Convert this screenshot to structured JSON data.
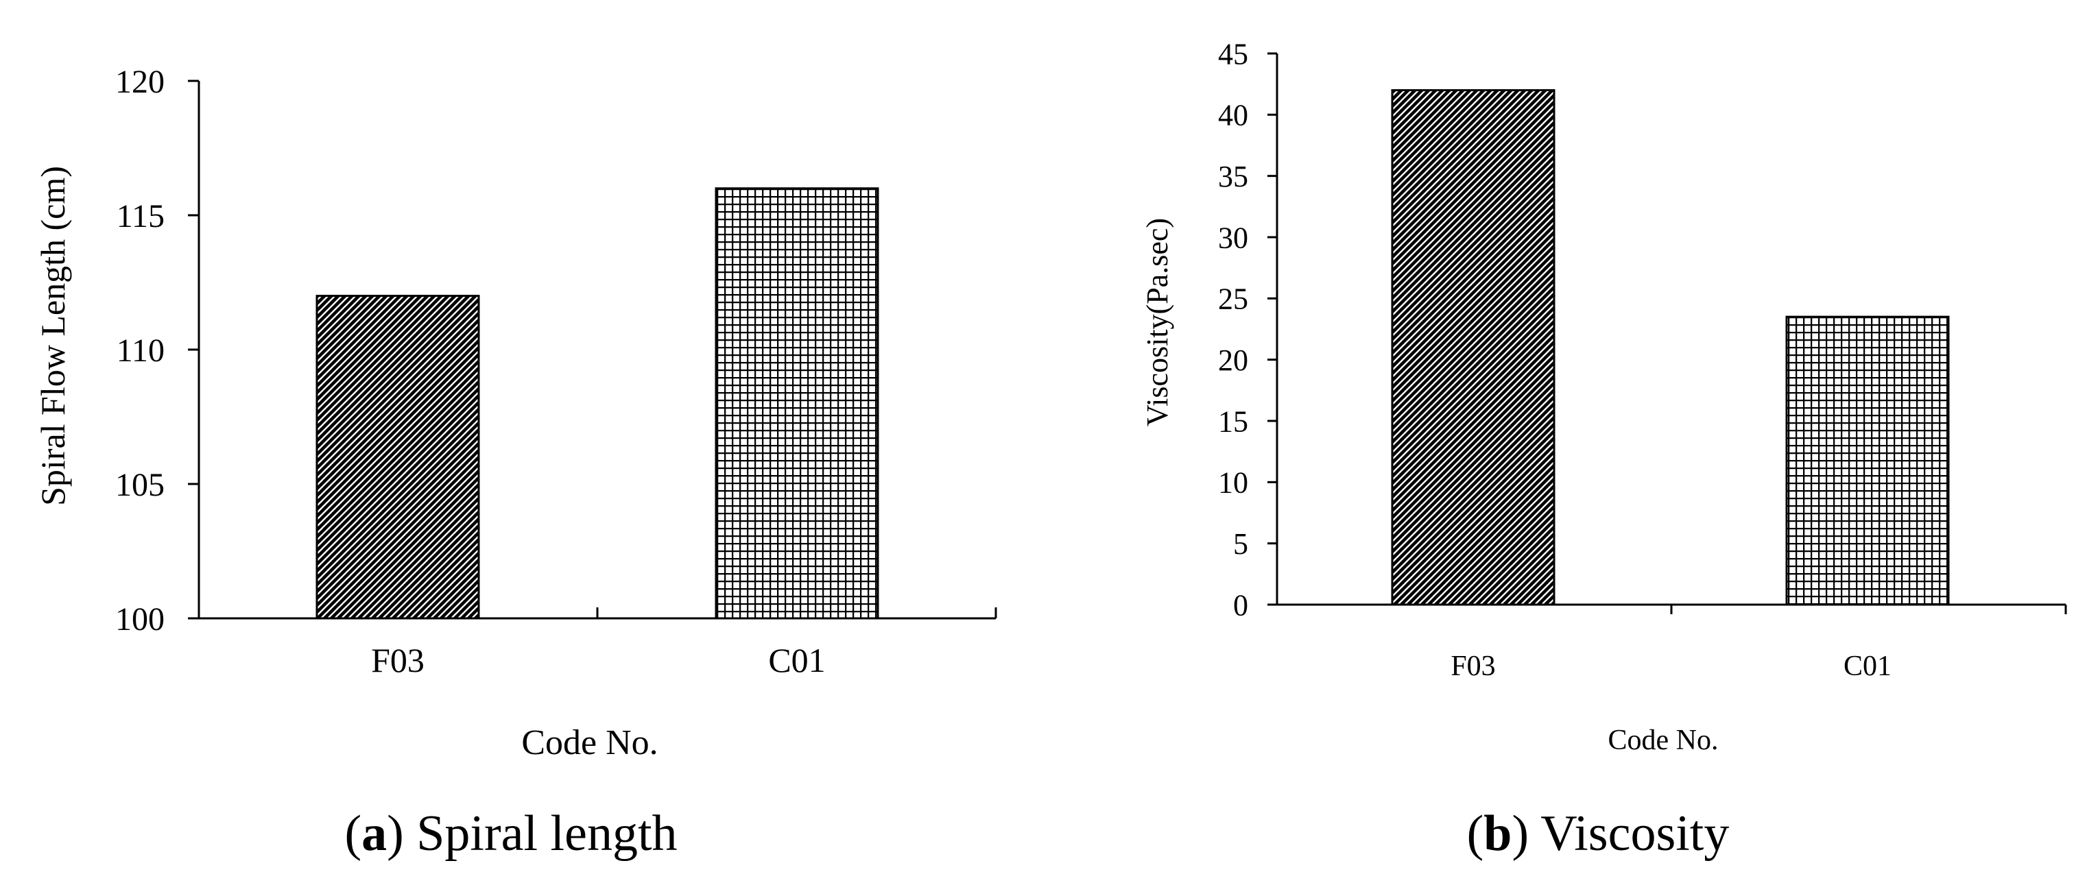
{
  "chart_data": [
    {
      "id": "a",
      "type": "bar",
      "title": "",
      "xlabel": "Code No.",
      "ylabel": "Spiral Flow Length (cm)",
      "categories": [
        "F03",
        "C01"
      ],
      "values": [
        112,
        116
      ],
      "ylim": [
        100,
        120
      ],
      "yticks": [
        100,
        105,
        110,
        115,
        120
      ],
      "ytick_labels": [
        "100",
        "105",
        "110",
        "115",
        "120"
      ],
      "bar_patterns": [
        "diagonal-hatch",
        "grid"
      ],
      "caption_letter": "a",
      "caption_text": "Spiral length"
    },
    {
      "id": "b",
      "type": "bar",
      "title": "",
      "xlabel": "Code No.",
      "ylabel": "Viscosity(Pa.sec)",
      "categories": [
        "F03",
        "C01"
      ],
      "values": [
        42,
        23.5
      ],
      "ylim": [
        0,
        45
      ],
      "yticks": [
        0,
        5,
        10,
        15,
        20,
        25,
        30,
        35,
        40,
        45
      ],
      "ytick_labels": [
        "0",
        "5",
        "10",
        "15",
        "20",
        "25",
        "30",
        "35",
        "40",
        "45"
      ],
      "bar_patterns": [
        "diagonal-hatch",
        "grid"
      ],
      "caption_letter": "b",
      "caption_text": "Viscosity"
    }
  ],
  "colors": {
    "ink": "#000000",
    "background": "#ffffff"
  }
}
